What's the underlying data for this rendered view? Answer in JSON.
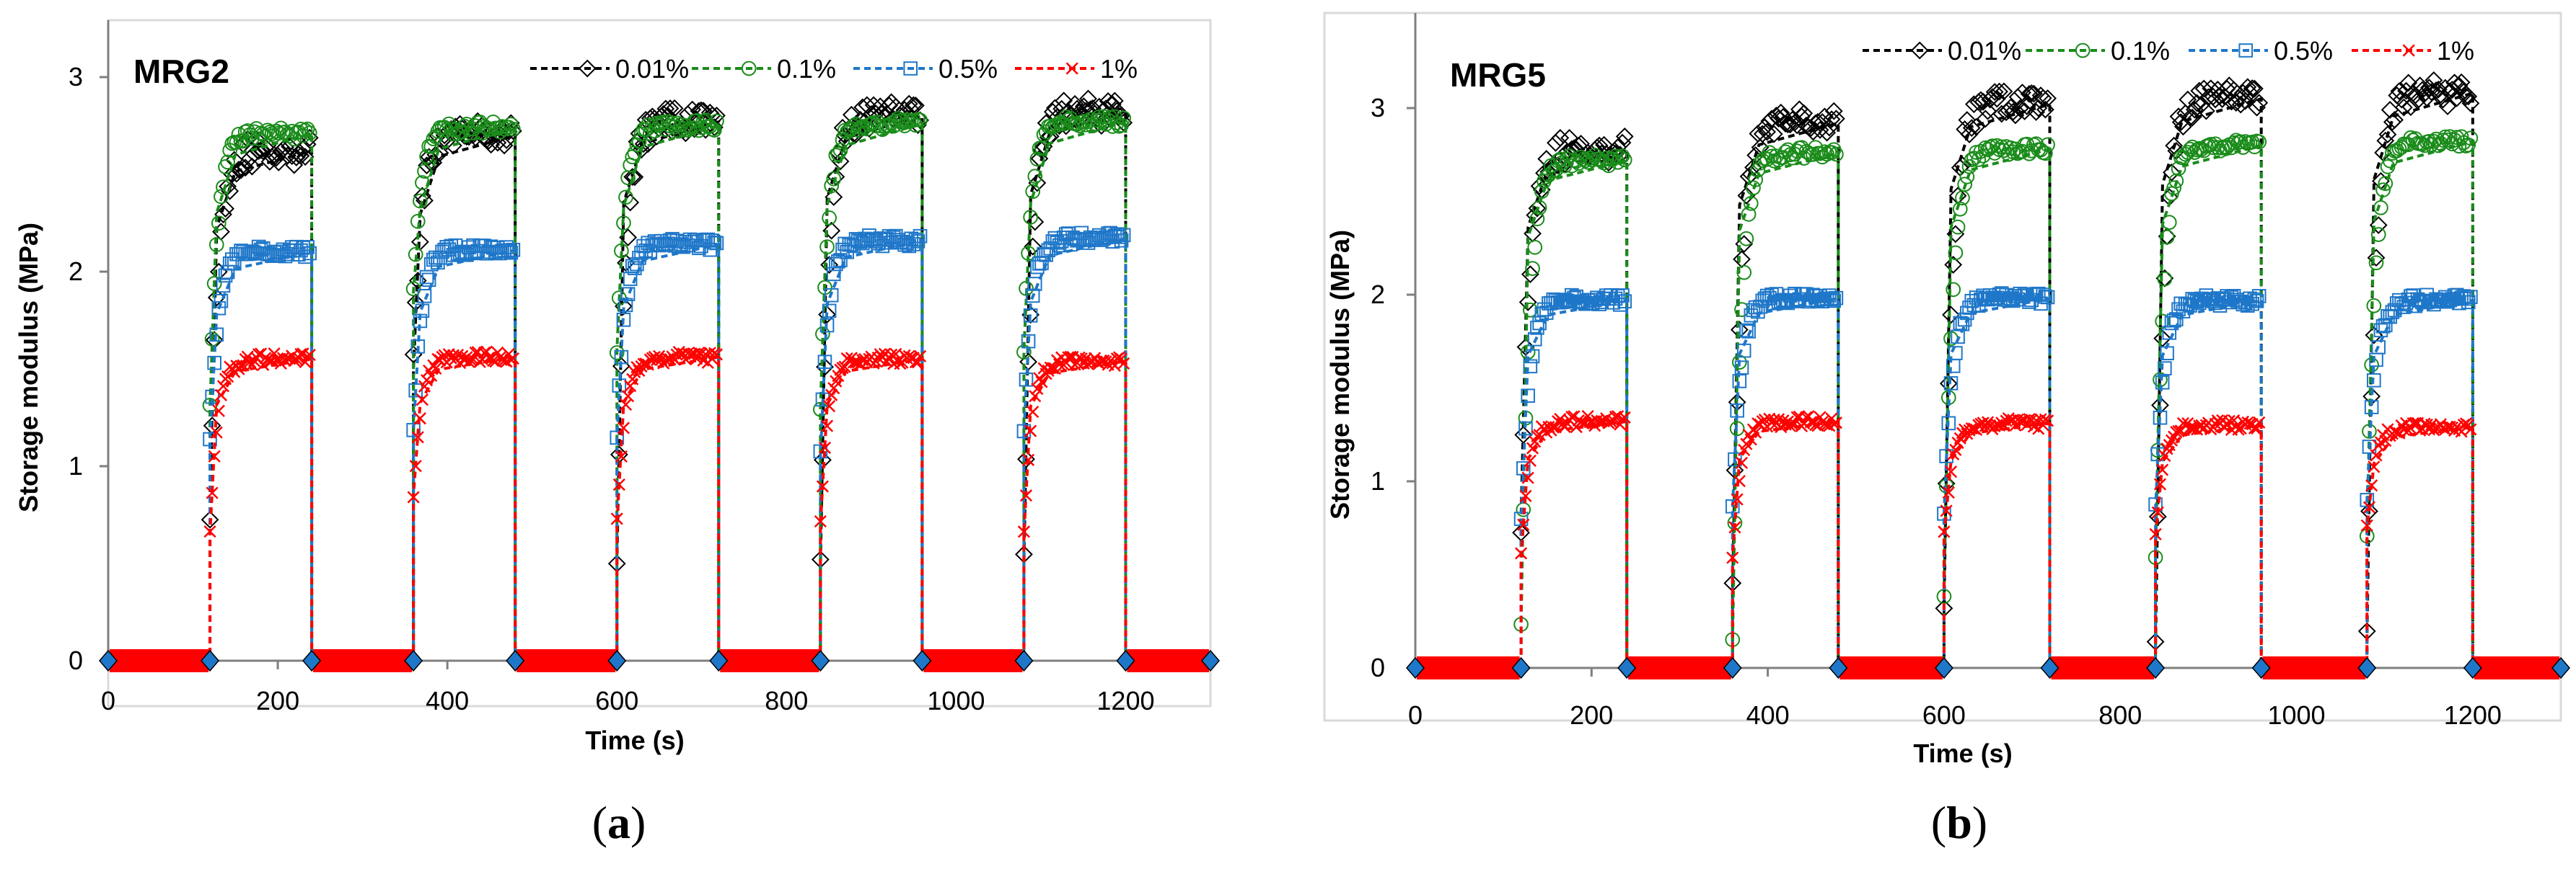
{
  "chart_data": [
    {
      "type": "scatter",
      "panel_label": "a",
      "title": "MRG2",
      "xlabel": "Time (s)",
      "ylabel": "Storage modulus (MPa)",
      "xlim": [
        0,
        1300
      ],
      "ylim": [
        0,
        3.2
      ],
      "xticks": [
        0,
        200,
        400,
        600,
        800,
        1000,
        1200
      ],
      "yticks": [
        0,
        1,
        2,
        3
      ],
      "legend_position": "top-right",
      "on_intervals": [
        [
          120,
          240
        ],
        [
          360,
          480
        ],
        [
          600,
          720
        ],
        [
          840,
          960
        ],
        [
          1080,
          1200
        ]
      ],
      "series": [
        {
          "name": "0.01%",
          "color": "#000000",
          "marker": "diamond",
          "plateau": [
            2.62,
            2.7,
            2.77,
            2.8,
            2.82
          ],
          "first_value": [
            0.8,
            1.5,
            0.5,
            0.48,
            0.5
          ]
        },
        {
          "name": "0.1%",
          "color": "#1a8c1a",
          "marker": "circle",
          "plateau": [
            2.71,
            2.74,
            2.75,
            2.76,
            2.77
          ],
          "first_value": [
            1.3,
            1.9,
            1.6,
            1.3,
            1.6
          ]
        },
        {
          "name": "0.5%",
          "color": "#1f77c9",
          "marker": "square",
          "plateau": [
            2.1,
            2.11,
            2.14,
            2.16,
            2.17
          ],
          "first_value": [
            1.12,
            1.18,
            1.15,
            1.05,
            1.18
          ]
        },
        {
          "name": "1%",
          "color": "#ff0000",
          "marker": "x",
          "plateau": [
            1.55,
            1.56,
            1.56,
            1.55,
            1.54
          ],
          "first_value": [
            0.65,
            0.85,
            0.7,
            0.7,
            0.65
          ]
        }
      ]
    },
    {
      "type": "scatter",
      "panel_label": "b",
      "title": "MRG5",
      "xlabel": "Time (s)",
      "ylabel": "Storage modulus (MPa)",
      "xlim": [
        0,
        1300
      ],
      "ylim": [
        0,
        3.4
      ],
      "xticks": [
        0,
        200,
        400,
        600,
        800,
        1000,
        1200
      ],
      "yticks": [
        0,
        1,
        2,
        3
      ],
      "legend_position": "top-right",
      "on_intervals": [
        [
          120,
          240
        ],
        [
          360,
          480
        ],
        [
          600,
          720
        ],
        [
          840,
          960
        ],
        [
          1080,
          1200
        ]
      ],
      "series": [
        {
          "name": "0.01%",
          "color": "#000000",
          "marker": "diamond",
          "plateau": [
            2.78,
            2.92,
            3.02,
            3.05,
            3.08
          ],
          "first_value": [
            0.8,
            0.38,
            0.32,
            0.1,
            0.15
          ]
        },
        {
          "name": "0.1%",
          "color": "#1a8c1a",
          "marker": "circle",
          "plateau": [
            2.72,
            2.76,
            2.78,
            2.8,
            2.82
          ],
          "first_value": [
            0.22,
            0.14,
            0.4,
            0.6,
            0.72
          ]
        },
        {
          "name": "0.5%",
          "color": "#1f77c9",
          "marker": "square",
          "plateau": [
            1.97,
            1.98,
            1.98,
            1.97,
            1.97
          ],
          "first_value": [
            0.78,
            0.86,
            0.83,
            0.85,
            0.9
          ]
        },
        {
          "name": "1%",
          "color": "#ff0000",
          "marker": "x",
          "plateau": [
            1.32,
            1.32,
            1.31,
            1.3,
            1.29
          ],
          "first_value": [
            0.6,
            0.6,
            0.7,
            0.7,
            0.75
          ]
        }
      ]
    }
  ]
}
